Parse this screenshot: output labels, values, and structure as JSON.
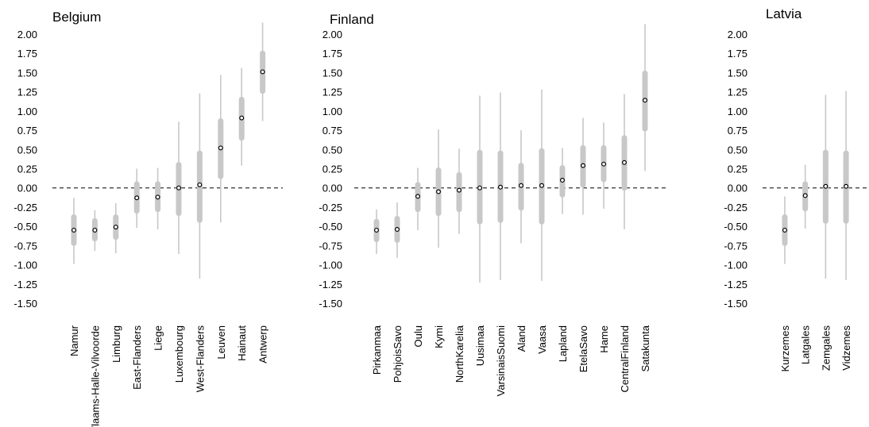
{
  "chart_data": [
    {
      "type": "forest",
      "title": "Belgium",
      "ylim": [
        -1.5,
        2.0
      ],
      "yticks": [
        "2.00",
        "1.75",
        "1.50",
        "1.25",
        "1.00",
        "0.75",
        "0.50",
        "0.25",
        "0.00",
        "-0.25",
        "-0.50",
        "-0.75",
        "-1.00",
        "-1.25",
        "-1.50"
      ],
      "reference_line": 0,
      "categories": [
        "Namur",
        "Vlaams-Halle-Vilvoorde",
        "Limburg",
        "East-Flanders",
        "Liege",
        "Luxembourg",
        "West-Flanders",
        "Leuven",
        "Hainaut",
        "Antwerp"
      ],
      "estimates": [
        -0.55,
        -0.55,
        -0.51,
        -0.13,
        -0.12,
        0.0,
        0.04,
        0.52,
        0.91,
        1.51
      ],
      "inner_low": [
        -0.72,
        -0.66,
        -0.64,
        -0.3,
        -0.28,
        -0.33,
        -0.42,
        0.15,
        0.65,
        1.26
      ],
      "inner_high": [
        -0.38,
        -0.43,
        -0.38,
        0.05,
        0.05,
        0.3,
        0.45,
        0.87,
        1.15,
        1.75
      ],
      "outer_low": [
        -0.99,
        -0.82,
        -0.85,
        -0.52,
        -0.54,
        -0.86,
        -1.18,
        -0.45,
        0.29,
        0.87
      ],
      "outer_high": [
        -0.13,
        -0.29,
        -0.2,
        0.25,
        0.26,
        0.86,
        1.23,
        1.47,
        1.56,
        2.15
      ]
    },
    {
      "type": "forest",
      "title": "Finland",
      "ylim": [
        -1.5,
        2.0
      ],
      "yticks": [
        "2.00",
        "1.75",
        "1.50",
        "1.25",
        "1.00",
        "0.75",
        "0.50",
        "0.25",
        "0.00",
        "-0.25",
        "-0.50",
        "-0.75",
        "-1.00",
        "-1.25",
        "-1.50"
      ],
      "reference_line": 0,
      "categories": [
        "Pirkanmaa",
        "PohjoisSavo",
        "Oulu",
        "Kymi",
        "NorthKarelia",
        "Uusimaa",
        "VarsinaisSuomi",
        "Aland",
        "Vaasa",
        "Lapland",
        "EtelaSavo",
        "Hame",
        "CentralFinland",
        "Satakunta"
      ],
      "estimates": [
        -0.55,
        -0.54,
        -0.11,
        -0.05,
        -0.03,
        0.0,
        0.01,
        0.03,
        0.03,
        0.1,
        0.29,
        0.31,
        0.33,
        1.14
      ],
      "inner_low": [
        -0.67,
        -0.68,
        -0.28,
        -0.33,
        -0.28,
        -0.44,
        -0.42,
        -0.26,
        -0.44,
        -0.09,
        0.04,
        0.11,
        0.0,
        0.77
      ],
      "inner_high": [
        -0.44,
        -0.4,
        0.04,
        0.23,
        0.17,
        0.46,
        0.45,
        0.29,
        0.48,
        0.26,
        0.52,
        0.52,
        0.65,
        1.49
      ],
      "outer_low": [
        -0.86,
        -0.91,
        -0.55,
        -0.78,
        -0.6,
        -1.23,
        -1.2,
        -0.72,
        -1.21,
        -0.34,
        -0.35,
        -0.27,
        -0.54,
        0.22
      ],
      "outer_high": [
        -0.28,
        -0.19,
        0.26,
        0.76,
        0.51,
        1.2,
        1.24,
        0.75,
        1.28,
        0.52,
        0.91,
        0.85,
        1.22,
        2.13
      ]
    },
    {
      "type": "forest",
      "title": "Latvia",
      "ylim": [
        -1.5,
        2.0
      ],
      "yticks": [
        "2.00",
        "1.75",
        "1.50",
        "1.25",
        "1.00",
        "0.75",
        "0.50",
        "0.25",
        "0.00",
        "-0.25",
        "-0.50",
        "-0.75",
        "-1.00",
        "-1.25",
        "-1.50"
      ],
      "reference_line": 0,
      "categories": [
        "Kurzemes",
        "Latgales",
        "Zemgales",
        "Vidzemes"
      ],
      "estimates": [
        -0.55,
        -0.1,
        0.02,
        0.02
      ],
      "inner_low": [
        -0.72,
        -0.27,
        -0.43,
        -0.43
      ],
      "inner_high": [
        -0.38,
        0.05,
        0.46,
        0.45
      ],
      "outer_low": [
        -0.99,
        -0.53,
        -1.18,
        -1.2
      ],
      "outer_high": [
        -0.11,
        0.3,
        1.21,
        1.26
      ]
    }
  ],
  "colors": {
    "interval": "#c8c8c8",
    "point_fill": "#ffffff",
    "point_stroke": "#000000",
    "reference_line": "#333333"
  }
}
